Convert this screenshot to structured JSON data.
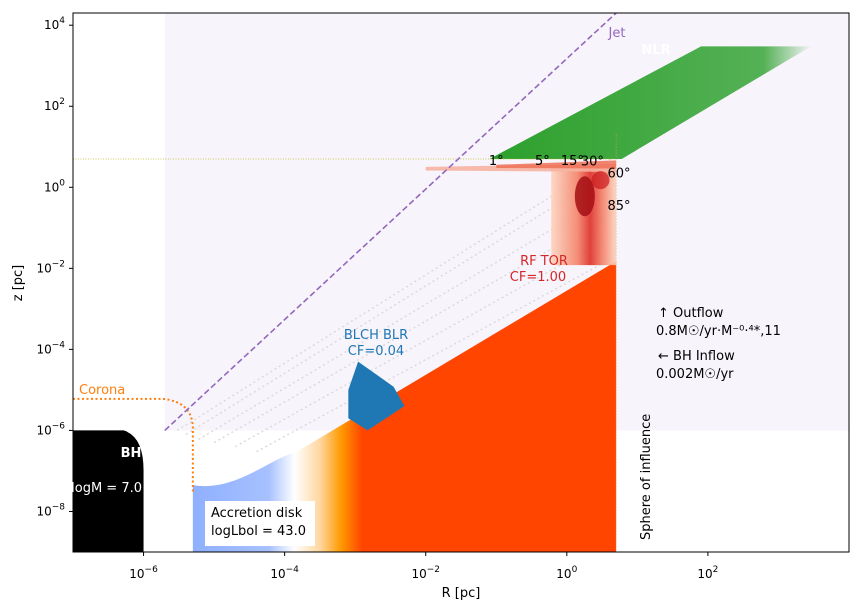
{
  "chart_data": {
    "type": "area",
    "xlabel": "R [pc]",
    "ylabel": "z [pc]",
    "xscale": "log",
    "yscale": "log",
    "xlim": [
      1e-07,
      10000.0
    ],
    "ylim": [
      1e-09,
      20000.0
    ],
    "grid": false,
    "x_ticks": [
      {
        "value": 1e-06,
        "base": "10",
        "exp": "−6"
      },
      {
        "value": 0.0001,
        "base": "10",
        "exp": "−4"
      },
      {
        "value": 0.01,
        "base": "10",
        "exp": "−2"
      },
      {
        "value": 1,
        "base": "10",
        "exp": "0"
      },
      {
        "value": 100,
        "base": "10",
        "exp": "2"
      }
    ],
    "y_ticks": [
      {
        "value": 1e-08,
        "base": "10",
        "exp": "−8"
      },
      {
        "value": 1e-06,
        "base": "10",
        "exp": "−6"
      },
      {
        "value": 0.0001,
        "base": "10",
        "exp": "−4"
      },
      {
        "value": 0.01,
        "base": "10",
        "exp": "−2"
      },
      {
        "value": 1,
        "base": "10",
        "exp": "0"
      },
      {
        "value": 100,
        "base": "10",
        "exp": "2"
      },
      {
        "value": 10000,
        "base": "10",
        "exp": "4"
      }
    ],
    "components": {
      "bh": {
        "label": "BH",
        "mass_label": "logM = 7.0",
        "color": "#000000",
        "r_extent": 1e-06,
        "z_extent": 1e-06
      },
      "corona": {
        "label": "Corona",
        "color": "#ff7f0e",
        "z_height": 6e-06,
        "r_extent": 5e-06
      },
      "jet": {
        "label": "Jet",
        "color": "#9467bd",
        "points": [
          [
            2e-06,
            1e-06
          ],
          [
            5,
            20000.0
          ]
        ]
      },
      "nlr": {
        "label": "NLR",
        "color": "#2ca02c",
        "z_range": [
          5,
          3000
        ],
        "r_outer": 3000
      },
      "blr": {
        "label_line1": "BLCH BLR",
        "label_line2": "CF=0.04",
        "color": "#1f77b4",
        "r_range": [
          0.0008,
          0.004
        ],
        "z_range": [
          1e-06,
          6e-05
        ]
      },
      "torus": {
        "label_line1": "RF TOR",
        "label_line2": "CF=1.00",
        "color": "#d62728",
        "r_range": [
          0.1,
          5
        ],
        "z_range": [
          0.01,
          5
        ]
      },
      "disk": {
        "label": "Accretion disk",
        "lbol_label": "logLbol = 43.0",
        "color": "#ff4500",
        "r_range": [
          5e-06,
          5
        ],
        "z_outer": 0.015
      },
      "sphere_of_influence": {
        "label": "Sphere of influence",
        "r": 5
      },
      "wind_cone_reference": {
        "z": 5,
        "color": "#bcbd22"
      }
    },
    "angle_labels": [
      {
        "text": "1°",
        "r": 0.1,
        "z": 4.5
      },
      {
        "text": "5°",
        "r": 0.45,
        "z": 4.5
      },
      {
        "text": "15°",
        "r": 1.2,
        "z": 4.5
      },
      {
        "text": "30°",
        "r": 2.3,
        "z": 4.3
      },
      {
        "text": "60°",
        "r": 5.5,
        "z": 2.2
      },
      {
        "text": "85°",
        "r": 5.5,
        "z": 0.35
      }
    ],
    "annotations": {
      "outflow_label": "↑  Outflow",
      "outflow_rate": "0.8M☉/yr·M⁻⁰·⁴*,11",
      "inflow_label": "←  BH Inflow",
      "inflow_rate": "0.002M☉/yr"
    }
  }
}
